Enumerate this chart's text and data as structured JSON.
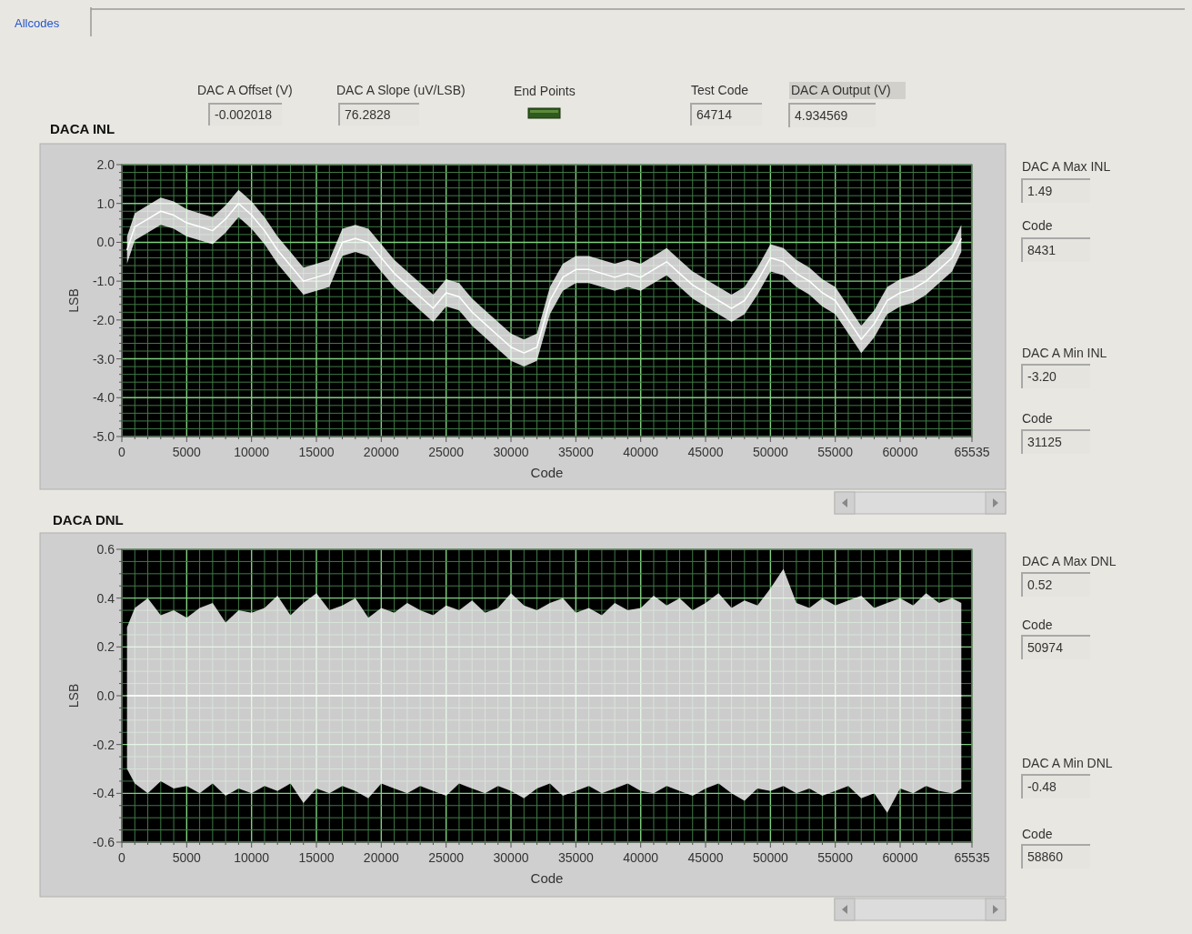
{
  "chart_data": [
    {
      "type": "other",
      "annotations": [
        "Allcodes",
        "DAC A Offset (V)",
        "-0.002018",
        "DAC A Slope (uV/LSB)",
        "76.2828",
        "End Points",
        "Test Code",
        "64714",
        "DAC A Output (V)",
        "4.934569",
        "DAC A Max INL",
        "1.49",
        "Code",
        "8431",
        "DAC A Min INL",
        "-3.20",
        "Code",
        "31125",
        "DAC A Max DNL",
        "0.52",
        "Code",
        "50974",
        "DAC A Min DNL",
        "-0.48",
        "Code",
        "58860"
      ]
    },
    {
      "type": "line",
      "title": "DACA INL",
      "xlabel": "Code",
      "ylabel": "LSB",
      "xlim": [
        0,
        65535
      ],
      "ylim": [
        -5,
        2
      ],
      "grid": true,
      "xticks": [
        0,
        {
          "value": 1000,
          "label": null
        },
        {
          "value": 2000,
          "label": null
        },
        {
          "value": 3000,
          "label": null
        },
        {
          "value": 4000,
          "label": null
        },
        5000,
        {
          "value": 6000,
          "label": null
        },
        {
          "value": 7000,
          "label": null
        },
        {
          "value": 8000,
          "label": null
        },
        {
          "value": 9000,
          "label": null
        },
        10000,
        {
          "value": 11000,
          "label": null
        },
        {
          "value": 12000,
          "label": null
        },
        {
          "value": 13000,
          "label": null
        },
        {
          "value": 14000,
          "label": null
        },
        15000,
        {
          "value": 16000,
          "label": null
        },
        {
          "value": 17000,
          "label": null
        },
        {
          "value": 18000,
          "label": null
        },
        {
          "value": 19000,
          "label": null
        },
        20000,
        {
          "value": 21000,
          "label": null
        },
        {
          "value": 22000,
          "label": null
        },
        {
          "value": 23000,
          "label": null
        },
        {
          "value": 24000,
          "label": null
        },
        25000,
        {
          "value": 26000,
          "label": null
        },
        {
          "value": 27000,
          "label": null
        },
        {
          "value": 28000,
          "label": null
        },
        {
          "value": 29000,
          "label": null
        },
        30000,
        {
          "value": 31000,
          "label": null
        },
        {
          "value": 32000,
          "label": null
        },
        {
          "value": 33000,
          "label": null
        },
        {
          "value": 34000,
          "label": null
        },
        35000,
        {
          "value": 36000,
          "label": null
        },
        {
          "value": 37000,
          "label": null
        },
        {
          "value": 38000,
          "label": null
        },
        {
          "value": 39000,
          "label": null
        },
        40000,
        {
          "value": 41000,
          "label": null
        },
        {
          "value": 42000,
          "label": null
        },
        {
          "value": 43000,
          "label": null
        },
        {
          "value": 44000,
          "label": null
        },
        45000,
        {
          "value": 46000,
          "label": null
        },
        {
          "value": 47000,
          "label": null
        },
        {
          "value": 48000,
          "label": null
        },
        {
          "value": 49000,
          "label": null
        },
        50000,
        {
          "value": 51000,
          "label": null
        },
        {
          "value": 52000,
          "label": null
        },
        {
          "value": 53000,
          "label": null
        },
        {
          "value": 54000,
          "label": null
        },
        55000,
        {
          "value": 56000,
          "label": null
        },
        {
          "value": 57000,
          "label": null
        },
        {
          "value": 58000,
          "label": null
        },
        {
          "value": 59000,
          "label": null
        },
        60000,
        {
          "value": 61000,
          "label": null
        },
        {
          "value": 62000,
          "label": null
        },
        {
          "value": 63000,
          "label": null
        },
        {
          "value": 64000,
          "label": null
        },
        65535
      ],
      "yticks": [
        {
          "value": 2,
          "label": "2.0"
        },
        {
          "value": 1.8,
          "label": null
        },
        {
          "value": 1.6,
          "label": null
        },
        {
          "value": 1.4,
          "label": null
        },
        {
          "value": 1.2,
          "label": null
        },
        {
          "value": 1,
          "label": "1.0"
        },
        {
          "value": 0.8,
          "label": null
        },
        {
          "value": 0.6,
          "label": null
        },
        {
          "value": 0.4,
          "label": null
        },
        {
          "value": 0.2,
          "label": null
        },
        {
          "value": 0,
          "label": "0.0"
        },
        {
          "value": -0.2,
          "label": null
        },
        {
          "value": -0.4,
          "label": null
        },
        {
          "value": -0.6,
          "label": null
        },
        {
          "value": -0.8,
          "label": null
        },
        {
          "value": -1,
          "label": "-1.0"
        },
        {
          "value": -1.2,
          "label": null
        },
        {
          "value": -1.4,
          "label": null
        },
        {
          "value": -1.6,
          "label": null
        },
        {
          "value": -1.8,
          "label": null
        },
        {
          "value": -2,
          "label": "-2.0"
        },
        {
          "value": -2.2,
          "label": null
        },
        {
          "value": -2.4,
          "label": null
        },
        {
          "value": -2.6,
          "label": null
        },
        {
          "value": -2.8,
          "label": null
        },
        {
          "value": -3,
          "label": "-3.0"
        },
        {
          "value": -3.2,
          "label": null
        },
        {
          "value": -3.4,
          "label": null
        },
        {
          "value": -3.6,
          "label": null
        },
        {
          "value": -3.8,
          "label": null
        },
        {
          "value": -4,
          "label": "-4.0"
        },
        {
          "value": -4.2,
          "label": null
        },
        {
          "value": -4.4,
          "label": null
        },
        {
          "value": -4.6,
          "label": null
        },
        {
          "value": -4.8,
          "label": null
        },
        {
          "value": -5,
          "label": "-5.0"
        }
      ],
      "x": [
        400,
        1000,
        2000,
        3000,
        4000,
        5000,
        6000,
        7000,
        8000,
        9000,
        10000,
        11000,
        12000,
        13000,
        14000,
        15000,
        16000,
        17000,
        18000,
        19000,
        20000,
        21000,
        22000,
        23000,
        24000,
        25000,
        26000,
        27000,
        28000,
        29000,
        30000,
        31000,
        32000,
        33000,
        34000,
        35000,
        36000,
        37000,
        38000,
        39000,
        40000,
        41000,
        42000,
        43000,
        44000,
        45000,
        46000,
        47000,
        48000,
        49000,
        50000,
        51000,
        52000,
        53000,
        54000,
        55000,
        56000,
        57000,
        58000,
        59000,
        60000,
        61000,
        62000,
        63000,
        64000,
        64714
      ],
      "series": [
        {
          "color": "#ffffff",
          "values": [
            -0.2,
            0.4,
            0.6,
            0.8,
            0.7,
            0.5,
            0.4,
            0.3,
            0.6,
            1.0,
            0.7,
            0.3,
            -0.2,
            -0.6,
            -1.0,
            -0.9,
            -0.8,
            0.0,
            0.1,
            0.0,
            -0.4,
            -0.8,
            -1.1,
            -1.4,
            -1.7,
            -1.3,
            -1.4,
            -1.8,
            -2.1,
            -2.4,
            -2.7,
            -2.85,
            -2.7,
            -1.5,
            -0.9,
            -0.7,
            -0.7,
            -0.8,
            -0.9,
            -0.8,
            -0.9,
            -0.7,
            -0.5,
            -0.8,
            -1.1,
            -1.3,
            -1.5,
            -1.7,
            -1.5,
            -1.0,
            -0.4,
            -0.5,
            -0.8,
            -1.0,
            -1.3,
            -1.5,
            -2.0,
            -2.5,
            -2.1,
            -1.5,
            -1.3,
            -1.2,
            -1.0,
            -0.7,
            -0.4,
            0.1
          ],
          "lower": [
            -0.55,
            0.05,
            0.25,
            0.45,
            0.35,
            0.15,
            0.05,
            -0.05,
            0.25,
            0.65,
            0.35,
            -0.05,
            -0.55,
            -0.95,
            -1.35,
            -1.25,
            -1.15,
            -0.35,
            -0.25,
            -0.35,
            -0.75,
            -1.15,
            -1.45,
            -1.75,
            -2.05,
            -1.65,
            -1.75,
            -2.15,
            -2.45,
            -2.75,
            -3.05,
            -3.2,
            -3.05,
            -1.85,
            -1.25,
            -1.05,
            -1.05,
            -1.15,
            -1.25,
            -1.15,
            -1.25,
            -1.05,
            -0.85,
            -1.15,
            -1.45,
            -1.65,
            -1.85,
            -2.05,
            -1.85,
            -1.35,
            -0.75,
            -0.85,
            -1.15,
            -1.35,
            -1.65,
            -1.85,
            -2.35,
            -2.85,
            -2.45,
            -1.85,
            -1.65,
            -1.55,
            -1.35,
            -1.05,
            -0.75,
            -0.25
          ],
          "upper": [
            0.15,
            0.75,
            0.95,
            1.15,
            1.05,
            0.85,
            0.75,
            0.65,
            0.95,
            1.35,
            1.05,
            0.65,
            0.15,
            -0.25,
            -0.65,
            -0.55,
            -0.45,
            0.35,
            0.45,
            0.35,
            -0.05,
            -0.45,
            -0.75,
            -1.05,
            -1.35,
            -0.95,
            -1.05,
            -1.45,
            -1.75,
            -2.05,
            -2.35,
            -2.5,
            -2.35,
            -1.15,
            -0.55,
            -0.35,
            -0.35,
            -0.45,
            -0.55,
            -0.45,
            -0.55,
            -0.35,
            -0.15,
            -0.45,
            -0.75,
            -0.95,
            -1.15,
            -1.35,
            -1.15,
            -0.65,
            -0.05,
            -0.15,
            -0.45,
            -0.65,
            -0.95,
            -1.15,
            -1.65,
            -2.15,
            -1.75,
            -1.15,
            -0.95,
            -0.85,
            -0.65,
            -0.35,
            -0.05,
            0.45
          ]
        }
      ]
    },
    {
      "type": "line",
      "title": "DACA DNL",
      "xlabel": "Code",
      "ylabel": "LSB",
      "xlim": [
        0,
        65535
      ],
      "ylim": [
        -0.6,
        0.6
      ],
      "grid": true,
      "xticks": [
        0,
        {
          "value": 1000,
          "label": null
        },
        {
          "value": 2000,
          "label": null
        },
        {
          "value": 3000,
          "label": null
        },
        {
          "value": 4000,
          "label": null
        },
        5000,
        {
          "value": 6000,
          "label": null
        },
        {
          "value": 7000,
          "label": null
        },
        {
          "value": 8000,
          "label": null
        },
        {
          "value": 9000,
          "label": null
        },
        10000,
        {
          "value": 11000,
          "label": null
        },
        {
          "value": 12000,
          "label": null
        },
        {
          "value": 13000,
          "label": null
        },
        {
          "value": 14000,
          "label": null
        },
        15000,
        {
          "value": 16000,
          "label": null
        },
        {
          "value": 17000,
          "label": null
        },
        {
          "value": 18000,
          "label": null
        },
        {
          "value": 19000,
          "label": null
        },
        20000,
        {
          "value": 21000,
          "label": null
        },
        {
          "value": 22000,
          "label": null
        },
        {
          "value": 23000,
          "label": null
        },
        {
          "value": 24000,
          "label": null
        },
        25000,
        {
          "value": 26000,
          "label": null
        },
        {
          "value": 27000,
          "label": null
        },
        {
          "value": 28000,
          "label": null
        },
        {
          "value": 29000,
          "label": null
        },
        30000,
        {
          "value": 31000,
          "label": null
        },
        {
          "value": 32000,
          "label": null
        },
        {
          "value": 33000,
          "label": null
        },
        {
          "value": 34000,
          "label": null
        },
        35000,
        {
          "value": 36000,
          "label": null
        },
        {
          "value": 37000,
          "label": null
        },
        {
          "value": 38000,
          "label": null
        },
        {
          "value": 39000,
          "label": null
        },
        40000,
        {
          "value": 41000,
          "label": null
        },
        {
          "value": 42000,
          "label": null
        },
        {
          "value": 43000,
          "label": null
        },
        {
          "value": 44000,
          "label": null
        },
        45000,
        {
          "value": 46000,
          "label": null
        },
        {
          "value": 47000,
          "label": null
        },
        {
          "value": 48000,
          "label": null
        },
        {
          "value": 49000,
          "label": null
        },
        50000,
        {
          "value": 51000,
          "label": null
        },
        {
          "value": 52000,
          "label": null
        },
        {
          "value": 53000,
          "label": null
        },
        {
          "value": 54000,
          "label": null
        },
        55000,
        {
          "value": 56000,
          "label": null
        },
        {
          "value": 57000,
          "label": null
        },
        {
          "value": 58000,
          "label": null
        },
        {
          "value": 59000,
          "label": null
        },
        60000,
        {
          "value": 61000,
          "label": null
        },
        {
          "value": 62000,
          "label": null
        },
        {
          "value": 63000,
          "label": null
        },
        {
          "value": 64000,
          "label": null
        },
        65535
      ],
      "yticks": [
        {
          "value": 0.6,
          "label": "0.6"
        },
        {
          "value": 0.55,
          "label": null
        },
        {
          "value": 0.5,
          "label": null
        },
        {
          "value": 0.45,
          "label": null
        },
        {
          "value": 0.4,
          "label": "0.4"
        },
        {
          "value": 0.35,
          "label": null
        },
        {
          "value": 0.3,
          "label": null
        },
        {
          "value": 0.25,
          "label": null
        },
        {
          "value": 0.2,
          "label": "0.2"
        },
        {
          "value": 0.15,
          "label": null
        },
        {
          "value": 0.1,
          "label": null
        },
        {
          "value": 0.05,
          "label": null
        },
        {
          "value": 0,
          "label": "0.0"
        },
        {
          "value": -0.05,
          "label": null
        },
        {
          "value": -0.1,
          "label": null
        },
        {
          "value": -0.15,
          "label": null
        },
        {
          "value": -0.2,
          "label": "-0.2"
        },
        {
          "value": -0.25,
          "label": null
        },
        {
          "value": -0.3,
          "label": null
        },
        {
          "value": -0.35,
          "label": null
        },
        {
          "value": -0.4,
          "label": "-0.4"
        },
        {
          "value": -0.45,
          "label": null
        },
        {
          "value": -0.5,
          "label": null
        },
        {
          "value": -0.55,
          "label": null
        },
        {
          "value": -0.6,
          "label": "-0.6"
        }
      ],
      "x": [
        400,
        1000,
        2000,
        3000,
        4000,
        5000,
        6000,
        7000,
        8000,
        9000,
        10000,
        11000,
        12000,
        13000,
        14000,
        15000,
        16000,
        17000,
        18000,
        19000,
        20000,
        21000,
        22000,
        23000,
        24000,
        25000,
        26000,
        27000,
        28000,
        29000,
        30000,
        31000,
        32000,
        33000,
        34000,
        35000,
        36000,
        37000,
        38000,
        39000,
        40000,
        41000,
        42000,
        43000,
        44000,
        45000,
        46000,
        47000,
        48000,
        49000,
        50000,
        51000,
        52000,
        53000,
        54000,
        55000,
        56000,
        57000,
        58000,
        59000,
        60000,
        61000,
        62000,
        63000,
        64000,
        64714
      ],
      "series": [
        {
          "color": "#ffffff",
          "values": [
            0,
            0,
            0,
            0,
            0,
            0,
            0,
            0,
            0,
            0,
            0,
            0,
            0,
            0,
            0,
            0,
            0,
            0,
            0,
            0,
            0,
            0,
            0,
            0,
            0,
            0,
            0,
            0,
            0,
            0,
            0,
            0,
            0,
            0,
            0,
            0,
            0,
            0,
            0,
            0,
            0,
            0,
            0,
            0,
            0,
            0,
            0,
            0,
            0,
            0,
            0,
            0,
            0,
            0,
            0,
            0,
            0,
            0,
            0,
            0,
            0,
            0,
            0,
            0,
            0,
            0
          ],
          "lower": [
            -0.3,
            -0.36,
            -0.4,
            -0.35,
            -0.38,
            -0.37,
            -0.4,
            -0.36,
            -0.41,
            -0.38,
            -0.4,
            -0.37,
            -0.39,
            -0.36,
            -0.44,
            -0.38,
            -0.4,
            -0.37,
            -0.39,
            -0.42,
            -0.36,
            -0.38,
            -0.4,
            -0.37,
            -0.39,
            -0.41,
            -0.36,
            -0.38,
            -0.4,
            -0.37,
            -0.39,
            -0.42,
            -0.38,
            -0.36,
            -0.41,
            -0.39,
            -0.37,
            -0.4,
            -0.38,
            -0.36,
            -0.39,
            -0.4,
            -0.37,
            -0.39,
            -0.41,
            -0.38,
            -0.36,
            -0.4,
            -0.43,
            -0.38,
            -0.39,
            -0.37,
            -0.4,
            -0.38,
            -0.41,
            -0.39,
            -0.37,
            -0.42,
            -0.4,
            -0.48,
            -0.38,
            -0.4,
            -0.37,
            -0.39,
            -0.4,
            -0.38
          ],
          "upper": [
            0.28,
            0.36,
            0.4,
            0.33,
            0.35,
            0.32,
            0.36,
            0.38,
            0.3,
            0.35,
            0.34,
            0.36,
            0.41,
            0.33,
            0.38,
            0.42,
            0.35,
            0.37,
            0.4,
            0.32,
            0.36,
            0.34,
            0.38,
            0.35,
            0.33,
            0.37,
            0.35,
            0.39,
            0.34,
            0.36,
            0.42,
            0.37,
            0.35,
            0.38,
            0.4,
            0.34,
            0.36,
            0.33,
            0.38,
            0.35,
            0.36,
            0.41,
            0.37,
            0.4,
            0.35,
            0.38,
            0.42,
            0.36,
            0.39,
            0.37,
            0.44,
            0.52,
            0.38,
            0.36,
            0.4,
            0.37,
            0.39,
            0.41,
            0.36,
            0.38,
            0.4,
            0.37,
            0.42,
            0.38,
            0.4,
            0.38
          ]
        }
      ]
    }
  ]
}
